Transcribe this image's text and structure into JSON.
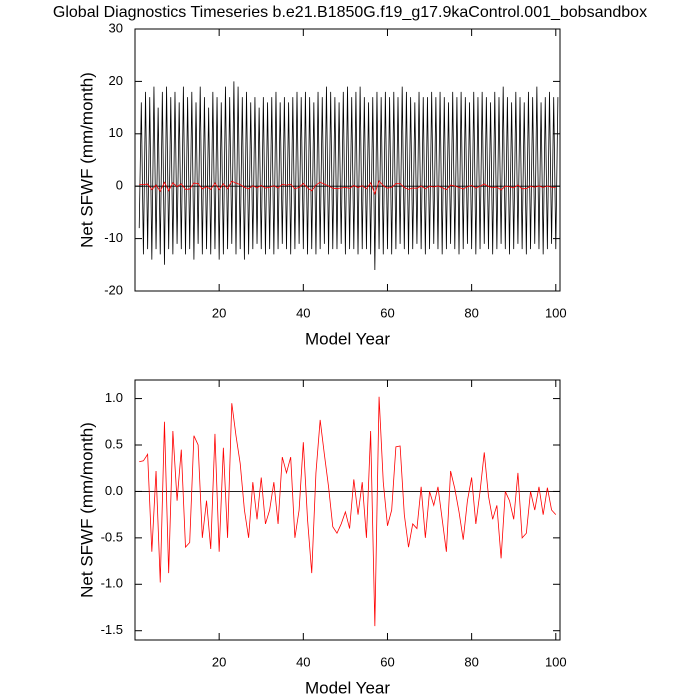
{
  "chart_data": [
    {
      "type": "line",
      "title": "Global Diagnostics Timeseries b.e21.B1850G.f19_g17.9kaControl.001_bobsandbox",
      "xlabel": "Model Year",
      "ylabel": "Net SFWF (mm/month)",
      "xlim": [
        0,
        101
      ],
      "xticks": [
        20,
        40,
        60,
        80,
        100
      ],
      "ylim": [
        -20,
        30
      ],
      "yticks": [
        -20,
        -10,
        0,
        10,
        20,
        30
      ],
      "hline": 0,
      "series": [
        {
          "color": "#000000",
          "x": [
            1,
            1.5,
            2,
            2.5,
            3,
            3.5,
            4,
            4.5,
            5,
            5.5,
            6,
            6.5,
            7,
            7.5,
            8,
            8.5,
            9,
            9.5,
            10,
            10.5,
            11,
            11.5,
            12,
            12.5,
            13,
            13.5,
            14,
            14.5,
            15,
            15.5,
            16,
            16.5,
            17,
            17.5,
            18,
            18.5,
            19,
            19.5,
            20,
            20.5,
            21,
            21.5,
            22,
            22.5,
            23,
            23.5,
            24,
            24.5,
            25,
            25.5,
            26,
            26.5,
            27,
            27.5,
            28,
            28.5,
            29,
            29.5,
            30,
            30.5,
            31,
            31.5,
            32,
            32.5,
            33,
            33.5,
            34,
            34.5,
            35,
            35.5,
            36,
            36.5,
            37,
            37.5,
            38,
            38.5,
            39,
            39.5,
            40,
            40.5,
            41,
            41.5,
            42,
            42.5,
            43,
            43.5,
            44,
            44.5,
            45,
            45.5,
            46,
            46.5,
            47,
            47.5,
            48,
            48.5,
            49,
            49.5,
            50,
            50.5,
            51,
            51.5,
            52,
            52.5,
            53,
            53.5,
            54,
            54.5,
            55,
            55.5,
            56,
            56.5,
            57,
            57.5,
            58,
            58.5,
            59,
            59.5,
            60,
            60.5,
            61,
            61.5,
            62,
            62.5,
            63,
            63.5,
            64,
            64.5,
            65,
            65.5,
            66,
            66.5,
            67,
            67.5,
            68,
            68.5,
            69,
            69.5,
            70,
            70.5,
            71,
            71.5,
            72,
            72.5,
            73,
            73.5,
            74,
            74.5,
            75,
            75.5,
            76,
            76.5,
            77,
            77.5,
            78,
            78.5,
            79,
            79.5,
            80,
            80.5,
            81,
            81.5,
            82,
            82.5,
            83,
            83.5,
            84,
            84.5,
            85,
            85.5,
            86,
            86.5,
            87,
            87.5,
            88,
            88.5,
            89,
            89.5,
            90,
            90.5,
            91,
            91.5,
            92,
            92.5,
            93,
            93.5,
            94,
            94.5,
            95,
            95.5,
            96,
            96.5,
            97,
            97.5,
            98,
            98.5,
            99,
            99.5,
            100,
            100.5
          ],
          "values": [
            -8,
            16,
            -13,
            18,
            -12,
            17,
            -14,
            19,
            -12,
            15,
            -13,
            18,
            -15,
            19,
            -12,
            17,
            -13,
            18,
            -11,
            16,
            -12,
            19,
            -13,
            17,
            -12,
            18,
            -14,
            16,
            -11,
            19,
            -13,
            17,
            -12,
            15,
            -13,
            18,
            -12,
            17,
            -14,
            16,
            -13,
            19,
            -12,
            17,
            -11,
            20,
            -13,
            19,
            -12,
            17,
            -14,
            18,
            -13,
            16,
            -12,
            17,
            -11,
            15,
            -12,
            17,
            -13,
            16,
            -12,
            17,
            -13,
            18,
            -12,
            16,
            -11,
            17,
            -12,
            16,
            -13,
            17,
            -12,
            18,
            -11,
            17,
            -12,
            18,
            -13,
            17,
            -12,
            16,
            -13,
            18,
            -12,
            17,
            -11,
            19,
            -13,
            18,
            -12,
            17,
            -12,
            16,
            -11,
            18,
            -13,
            19,
            -12,
            17,
            -12,
            18,
            -13,
            19,
            -12,
            17,
            -12,
            16,
            -13,
            17,
            -16,
            18,
            -12,
            17,
            -13,
            18,
            -12,
            17,
            -13,
            18,
            -12,
            17,
            -11,
            19,
            -12,
            18,
            -13,
            17,
            -12,
            16,
            -11,
            18,
            -12,
            17,
            -13,
            17,
            -12,
            18,
            -11,
            17,
            -12,
            18,
            -13,
            17,
            -12,
            16,
            -11,
            18,
            -12,
            17,
            -13,
            18,
            -12,
            17,
            -11,
            16,
            -12,
            18,
            -13,
            17,
            -12,
            18,
            -11,
            17,
            -12,
            16,
            -13,
            18,
            -12,
            17,
            -11,
            19,
            -12,
            17,
            -13,
            16,
            -12,
            18,
            -11,
            17,
            -12,
            16,
            -13,
            18,
            -12,
            17,
            -11,
            19,
            -12,
            16,
            -13,
            17,
            -12,
            18,
            -11,
            17,
            -12,
            17
          ]
        },
        {
          "color": "#ff0000",
          "x": [
            1,
            2,
            3,
            4,
            5,
            6,
            7,
            8,
            9,
            10,
            11,
            12,
            13,
            14,
            15,
            16,
            17,
            18,
            19,
            20,
            21,
            22,
            23,
            24,
            25,
            26,
            27,
            28,
            29,
            30,
            31,
            32,
            33,
            34,
            35,
            36,
            37,
            38,
            39,
            40,
            41,
            42,
            43,
            44,
            45,
            46,
            47,
            48,
            49,
            50,
            51,
            52,
            53,
            54,
            55,
            56,
            57,
            58,
            59,
            60,
            61,
            62,
            63,
            64,
            65,
            66,
            67,
            68,
            69,
            70,
            71,
            72,
            73,
            74,
            75,
            76,
            77,
            78,
            79,
            80,
            81,
            82,
            83,
            84,
            85,
            86,
            87,
            88,
            89,
            90,
            91,
            92,
            93,
            94,
            95,
            96,
            97,
            98,
            99,
            100
          ],
          "values": [
            0.32,
            0.33,
            0.4,
            -0.65,
            0.22,
            -0.98,
            0.75,
            -0.88,
            0.65,
            -0.1,
            0.45,
            -0.6,
            -0.55,
            0.6,
            0.5,
            -0.5,
            -0.1,
            -0.62,
            0.62,
            -0.65,
            0.47,
            -0.5,
            0.95,
            0.6,
            0.3,
            -0.2,
            -0.5,
            0.1,
            -0.3,
            0.15,
            -0.35,
            -0.2,
            0.1,
            -0.35,
            0.37,
            0.2,
            0.37,
            -0.5,
            -0.2,
            0.53,
            -0.3,
            -0.88,
            0.2,
            0.77,
            0.4,
            0.05,
            -0.38,
            -0.45,
            -0.35,
            -0.22,
            -0.4,
            0.13,
            -0.25,
            0.1,
            -0.5,
            0.65,
            -1.45,
            1.02,
            0.1,
            -0.37,
            -0.2,
            0.48,
            0.49,
            -0.25,
            -0.6,
            -0.35,
            -0.4,
            0.05,
            -0.5,
            0.0,
            -0.15,
            0.05,
            -0.3,
            -0.65,
            0.22,
            0.03,
            -0.22,
            -0.52,
            -0.1,
            0.15,
            -0.35,
            0.0,
            0.42,
            -0.05,
            -0.3,
            -0.15,
            -0.72,
            0.0,
            -0.1,
            -0.3,
            0.2,
            -0.5,
            -0.45,
            0.0,
            -0.2,
            0.05,
            -0.25,
            0.04,
            -0.2,
            -0.25
          ]
        }
      ]
    },
    {
      "type": "line",
      "xlabel": "Model Year",
      "ylabel": "Net SFWF (mm/month)",
      "xlim": [
        0,
        101
      ],
      "xticks": [
        20,
        40,
        60,
        80,
        100
      ],
      "ylim": [
        -1.6,
        1.2
      ],
      "yticks": [
        -1.5,
        {
          "value": -1,
          "label": "-1.0"
        },
        -0.5,
        {
          "value": 0,
          "label": "0.0"
        },
        0.5,
        {
          "value": 1,
          "label": "1.0"
        }
      ],
      "hline": 0,
      "series": [
        {
          "color": "#ff0000",
          "x": [
            1,
            2,
            3,
            4,
            5,
            6,
            7,
            8,
            9,
            10,
            11,
            12,
            13,
            14,
            15,
            16,
            17,
            18,
            19,
            20,
            21,
            22,
            23,
            24,
            25,
            26,
            27,
            28,
            29,
            30,
            31,
            32,
            33,
            34,
            35,
            36,
            37,
            38,
            39,
            40,
            41,
            42,
            43,
            44,
            45,
            46,
            47,
            48,
            49,
            50,
            51,
            52,
            53,
            54,
            55,
            56,
            57,
            58,
            59,
            60,
            61,
            62,
            63,
            64,
            65,
            66,
            67,
            68,
            69,
            70,
            71,
            72,
            73,
            74,
            75,
            76,
            77,
            78,
            79,
            80,
            81,
            82,
            83,
            84,
            85,
            86,
            87,
            88,
            89,
            90,
            91,
            92,
            93,
            94,
            95,
            96,
            97,
            98,
            99,
            100
          ],
          "values": [
            0.32,
            0.33,
            0.4,
            -0.65,
            0.22,
            -0.98,
            0.75,
            -0.88,
            0.65,
            -0.1,
            0.45,
            -0.6,
            -0.55,
            0.6,
            0.5,
            -0.5,
            -0.1,
            -0.62,
            0.62,
            -0.65,
            0.47,
            -0.5,
            0.95,
            0.6,
            0.3,
            -0.2,
            -0.5,
            0.1,
            -0.3,
            0.15,
            -0.35,
            -0.2,
            0.1,
            -0.35,
            0.37,
            0.2,
            0.37,
            -0.5,
            -0.2,
            0.53,
            -0.3,
            -0.88,
            0.2,
            0.77,
            0.4,
            0.05,
            -0.38,
            -0.45,
            -0.35,
            -0.22,
            -0.4,
            0.13,
            -0.25,
            0.1,
            -0.5,
            0.65,
            -1.45,
            1.02,
            0.1,
            -0.37,
            -0.2,
            0.48,
            0.49,
            -0.25,
            -0.6,
            -0.35,
            -0.4,
            0.05,
            -0.5,
            0.0,
            -0.15,
            0.05,
            -0.3,
            -0.65,
            0.22,
            0.03,
            -0.22,
            -0.52,
            -0.1,
            0.15,
            -0.35,
            0.0,
            0.42,
            -0.05,
            -0.3,
            -0.15,
            -0.72,
            0.0,
            -0.1,
            -0.3,
            0.2,
            -0.5,
            -0.45,
            0.0,
            -0.2,
            0.05,
            -0.25,
            0.04,
            -0.2,
            -0.25
          ]
        }
      ]
    }
  ]
}
